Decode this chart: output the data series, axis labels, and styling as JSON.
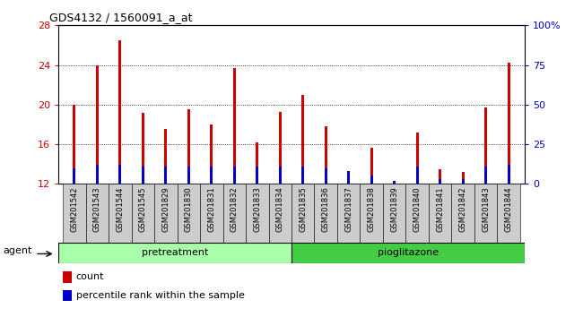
{
  "title": "GDS4132 / 1560091_a_at",
  "samples": [
    "GSM201542",
    "GSM201543",
    "GSM201544",
    "GSM201545",
    "GSM201829",
    "GSM201830",
    "GSM201831",
    "GSM201832",
    "GSM201833",
    "GSM201834",
    "GSM201835",
    "GSM201836",
    "GSM201837",
    "GSM201838",
    "GSM201839",
    "GSM201840",
    "GSM201841",
    "GSM201842",
    "GSM201843",
    "GSM201844"
  ],
  "count_values": [
    20.0,
    24.0,
    26.5,
    19.2,
    17.5,
    19.5,
    18.0,
    23.7,
    16.2,
    19.3,
    21.0,
    17.8,
    12.2,
    15.6,
    12.1,
    17.2,
    13.5,
    13.2,
    19.7,
    24.2
  ],
  "percentile_pct": [
    10,
    12,
    12,
    11,
    11,
    11,
    11,
    11,
    11,
    11,
    11,
    10,
    8,
    5,
    2,
    11,
    3,
    3,
    11,
    12
  ],
  "pretreatment_count": 10,
  "pioglitazone_count": 10,
  "ylim_left": [
    12,
    28
  ],
  "ylim_right": [
    0,
    100
  ],
  "yticks_left": [
    12,
    16,
    20,
    24,
    28
  ],
  "yticks_right": [
    0,
    25,
    50,
    75,
    100
  ],
  "count_color": "#cc0000",
  "percentile_color": "#0000cc",
  "bar_width": 0.4,
  "pretreatment_color": "#aaffaa",
  "pioglitazone_color": "#44cc44",
  "agent_label": "agent",
  "pretreatment_label": "pretreatment",
  "pioglitazone_label": "pioglitazone",
  "legend_count_label": "count",
  "legend_percentile_label": "percentile rank within the sample",
  "ytick_right_labels": [
    "0",
    "25",
    "50",
    "75",
    "100%"
  ],
  "grid_lines": [
    16,
    20,
    24
  ],
  "tick_bg_color": "#cccccc",
  "plot_bg_color": "#ffffff"
}
